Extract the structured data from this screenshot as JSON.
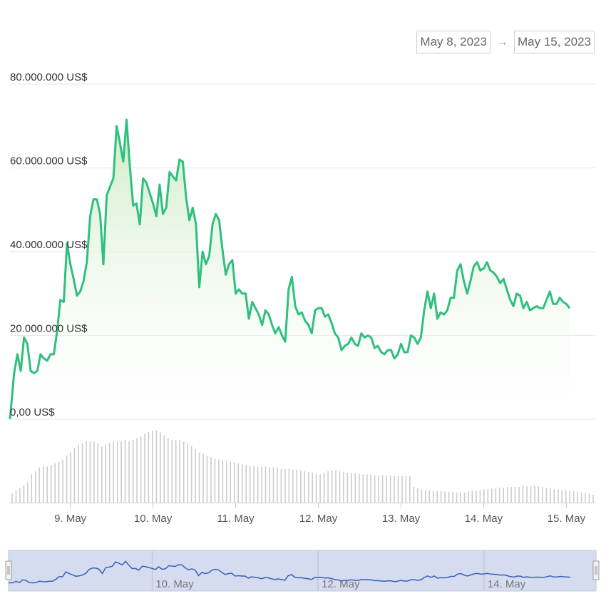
{
  "date_range": {
    "start": "May 8, 2023",
    "arrow": "→",
    "end": "May 15, 2023"
  },
  "colors": {
    "line": "#2fbf7f",
    "area_top": "#d6efd0",
    "bars": "#cccccc",
    "navigator_fill": "#d5dcef",
    "navigator_line": "#3a5fb7"
  },
  "chart_data": {
    "type": "area",
    "title": "",
    "xlabel": "",
    "ylabel": "",
    "ylim": [
      0,
      80000000
    ],
    "y_ticks": [
      "0,00 US$",
      "20.000.000 US$",
      "40.000.000 US$",
      "60.000.000 US$",
      "80.000.000 US$"
    ],
    "y_tick_values": [
      0,
      20000000,
      40000000,
      60000000,
      80000000
    ],
    "x_ticks": [
      "9. May",
      "10. May",
      "11. May",
      "12. May",
      "13. May",
      "14. May",
      "15. May"
    ],
    "x_tick_values": [
      1,
      2,
      3,
      4,
      5,
      6,
      7
    ],
    "xlim": [
      0.27,
      7.35
    ],
    "grid": true,
    "series": [
      {
        "values": [
          [
            0.27,
            0
          ],
          [
            0.32,
            11000000
          ],
          [
            0.36,
            15500000
          ],
          [
            0.4,
            11500000
          ],
          [
            0.44,
            19500000
          ],
          [
            0.48,
            18000000
          ],
          [
            0.52,
            11500000
          ],
          [
            0.56,
            11000000
          ],
          [
            0.6,
            11500000
          ],
          [
            0.64,
            15500000
          ],
          [
            0.68,
            14500000
          ],
          [
            0.72,
            14000000
          ],
          [
            0.76,
            15500000
          ],
          [
            0.8,
            15500000
          ],
          [
            0.84,
            21000000
          ],
          [
            0.88,
            28500000
          ],
          [
            0.92,
            28000000
          ],
          [
            0.96,
            42000000
          ],
          [
            1.0,
            37000000
          ],
          [
            1.04,
            33500000
          ],
          [
            1.08,
            29500000
          ],
          [
            1.12,
            30500000
          ],
          [
            1.16,
            33000000
          ],
          [
            1.2,
            37500000
          ],
          [
            1.24,
            48500000
          ],
          [
            1.28,
            52500000
          ],
          [
            1.32,
            52500000
          ],
          [
            1.36,
            49000000
          ],
          [
            1.4,
            37000000
          ],
          [
            1.44,
            53500000
          ],
          [
            1.48,
            55500000
          ],
          [
            1.52,
            57500000
          ],
          [
            1.56,
            70000000
          ],
          [
            1.6,
            66000000
          ],
          [
            1.64,
            61500000
          ],
          [
            1.68,
            71500000
          ],
          [
            1.72,
            60500000
          ],
          [
            1.76,
            51000000
          ],
          [
            1.8,
            51500000
          ],
          [
            1.84,
            46500000
          ],
          [
            1.88,
            57500000
          ],
          [
            1.92,
            56500000
          ],
          [
            1.96,
            54000000
          ],
          [
            2.0,
            51500000
          ],
          [
            2.04,
            48500000
          ],
          [
            2.08,
            56000000
          ],
          [
            2.12,
            49000000
          ],
          [
            2.16,
            50500000
          ],
          [
            2.2,
            59000000
          ],
          [
            2.24,
            58000000
          ],
          [
            2.28,
            57000000
          ],
          [
            2.32,
            62000000
          ],
          [
            2.36,
            61500000
          ],
          [
            2.4,
            53000000
          ],
          [
            2.44,
            47500000
          ],
          [
            2.48,
            50500000
          ],
          [
            2.52,
            46500000
          ],
          [
            2.56,
            31500000
          ],
          [
            2.6,
            40000000
          ],
          [
            2.64,
            37000000
          ],
          [
            2.68,
            39000000
          ],
          [
            2.72,
            46500000
          ],
          [
            2.76,
            49000000
          ],
          [
            2.8,
            47500000
          ],
          [
            2.84,
            40500000
          ],
          [
            2.88,
            34500000
          ],
          [
            2.92,
            37000000
          ],
          [
            2.96,
            38000000
          ],
          [
            3.0,
            30000000
          ],
          [
            3.04,
            31000000
          ],
          [
            3.08,
            30000000
          ],
          [
            3.12,
            30000000
          ],
          [
            3.16,
            24000000
          ],
          [
            3.2,
            28000000
          ],
          [
            3.24,
            26500000
          ],
          [
            3.28,
            25000000
          ],
          [
            3.32,
            22500000
          ],
          [
            3.36,
            26000000
          ],
          [
            3.4,
            25000000
          ],
          [
            3.44,
            22500000
          ],
          [
            3.48,
            20500000
          ],
          [
            3.52,
            22000000
          ],
          [
            3.56,
            20000000
          ],
          [
            3.6,
            18500000
          ],
          [
            3.64,
            31000000
          ],
          [
            3.68,
            34000000
          ],
          [
            3.72,
            27000000
          ],
          [
            3.76,
            25000000
          ],
          [
            3.8,
            25500000
          ],
          [
            3.84,
            23500000
          ],
          [
            3.88,
            22500000
          ],
          [
            3.92,
            20500000
          ],
          [
            3.96,
            26000000
          ],
          [
            4.0,
            26500000
          ],
          [
            4.04,
            26500000
          ],
          [
            4.08,
            24500000
          ],
          [
            4.12,
            25000000
          ],
          [
            4.16,
            23000000
          ],
          [
            4.2,
            20500000
          ],
          [
            4.24,
            19500000
          ],
          [
            4.28,
            16500000
          ],
          [
            4.32,
            17500000
          ],
          [
            4.36,
            18000000
          ],
          [
            4.4,
            19500000
          ],
          [
            4.44,
            18000000
          ],
          [
            4.48,
            17500000
          ],
          [
            4.52,
            20500000
          ],
          [
            4.56,
            19500000
          ],
          [
            4.6,
            20000000
          ],
          [
            4.64,
            19500000
          ],
          [
            4.68,
            17000000
          ],
          [
            4.72,
            17500000
          ],
          [
            4.76,
            16000000
          ],
          [
            4.8,
            15500000
          ],
          [
            4.84,
            16500000
          ],
          [
            4.88,
            16500000
          ],
          [
            4.92,
            14500000
          ],
          [
            4.96,
            15500000
          ],
          [
            5.0,
            18000000
          ],
          [
            5.04,
            16000000
          ],
          [
            5.08,
            16000000
          ],
          [
            5.12,
            20000000
          ],
          [
            5.16,
            19500000
          ],
          [
            5.2,
            18000000
          ],
          [
            5.24,
            19500000
          ],
          [
            5.28,
            26000000
          ],
          [
            5.32,
            30500000
          ],
          [
            5.36,
            26500000
          ],
          [
            5.4,
            30000000
          ],
          [
            5.44,
            24000000
          ],
          [
            5.48,
            25500000
          ],
          [
            5.52,
            25000000
          ],
          [
            5.56,
            26000000
          ],
          [
            5.6,
            29000000
          ],
          [
            5.64,
            29000000
          ],
          [
            5.68,
            35500000
          ],
          [
            5.72,
            37000000
          ],
          [
            5.76,
            33000000
          ],
          [
            5.8,
            30000000
          ],
          [
            5.84,
            33000000
          ],
          [
            5.88,
            36500000
          ],
          [
            5.92,
            37500000
          ],
          [
            5.96,
            35500000
          ],
          [
            6.0,
            36000000
          ],
          [
            6.04,
            37500000
          ],
          [
            6.08,
            35500000
          ],
          [
            6.12,
            35000000
          ],
          [
            6.16,
            34000000
          ],
          [
            6.2,
            32500000
          ],
          [
            6.24,
            33500000
          ],
          [
            6.28,
            31000000
          ],
          [
            6.32,
            28500000
          ],
          [
            6.36,
            27000000
          ],
          [
            6.4,
            30000000
          ],
          [
            6.44,
            29500000
          ],
          [
            6.48,
            26500000
          ],
          [
            6.52,
            28000000
          ],
          [
            6.56,
            26000000
          ],
          [
            6.6,
            26500000
          ],
          [
            6.64,
            27000000
          ],
          [
            6.68,
            26500000
          ],
          [
            6.72,
            26500000
          ],
          [
            6.76,
            28500000
          ],
          [
            6.8,
            30500000
          ],
          [
            6.84,
            27500000
          ],
          [
            6.88,
            27500000
          ],
          [
            6.92,
            29000000
          ],
          [
            6.96,
            28000000
          ],
          [
            7.0,
            27500000
          ],
          [
            7.04,
            26500000
          ]
        ]
      }
    ],
    "volume_bars": [
      0.12,
      0.16,
      0.19,
      0.22,
      0.26,
      0.36,
      0.4,
      0.45,
      0.46,
      0.46,
      0.48,
      0.5,
      0.52,
      0.55,
      0.6,
      0.64,
      0.7,
      0.74,
      0.76,
      0.78,
      0.78,
      0.78,
      0.76,
      0.72,
      0.74,
      0.76,
      0.78,
      0.78,
      0.78,
      0.8,
      0.78,
      0.8,
      0.82,
      0.84,
      0.88,
      0.9,
      0.92,
      0.92,
      0.9,
      0.86,
      0.82,
      0.8,
      0.8,
      0.8,
      0.78,
      0.76,
      0.72,
      0.68,
      0.64,
      0.62,
      0.6,
      0.58,
      0.56,
      0.55,
      0.54,
      0.53,
      0.52,
      0.51,
      0.5,
      0.49,
      0.48,
      0.47,
      0.47,
      0.46,
      0.46,
      0.46,
      0.45,
      0.45,
      0.44,
      0.43,
      0.43,
      0.43,
      0.42,
      0.42,
      0.41,
      0.4,
      0.39,
      0.38,
      0.37,
      0.36,
      0.38,
      0.4,
      0.41,
      0.41,
      0.4,
      0.39,
      0.38,
      0.38,
      0.37,
      0.37,
      0.36,
      0.36,
      0.36,
      0.35,
      0.35,
      0.35,
      0.35,
      0.35,
      0.34,
      0.34,
      0.34,
      0.34,
      0.34,
      0.2,
      0.18,
      0.17,
      0.16,
      0.16,
      0.15,
      0.15,
      0.15,
      0.14,
      0.14,
      0.14,
      0.13,
      0.13,
      0.13,
      0.14,
      0.15,
      0.15,
      0.16,
      0.17,
      0.17,
      0.18,
      0.18,
      0.19,
      0.19,
      0.2,
      0.2,
      0.2,
      0.2,
      0.21,
      0.21,
      0.21,
      0.22,
      0.21,
      0.2,
      0.19,
      0.18,
      0.17,
      0.17,
      0.16,
      0.16,
      0.15,
      0.15,
      0.14,
      0.13,
      0.12,
      0.11,
      0.1
    ],
    "navigator": {
      "labels": [
        "10. May",
        "12. May",
        "14. May"
      ],
      "label_values": [
        2,
        4,
        6
      ]
    }
  }
}
